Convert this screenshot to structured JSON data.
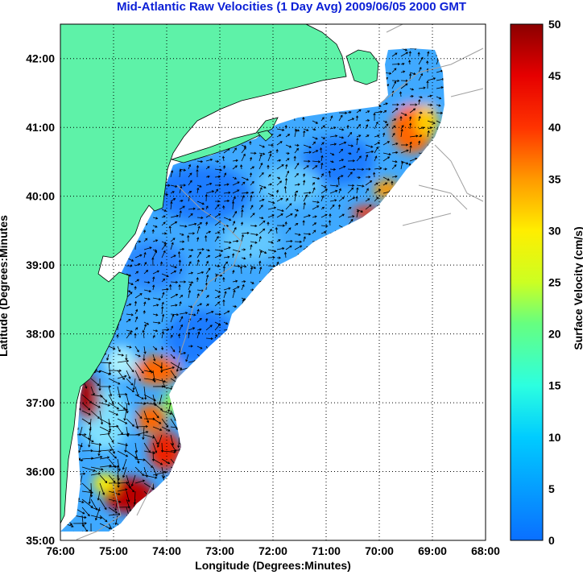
{
  "title": "Mid-Atlantic Raw Velocities (1 Day Avg) 2009/06/05 2000 GMT",
  "xlabel": "Longitude (Degrees:Minutes)",
  "ylabel": "Latitude (Degrees:Minutes",
  "colorbar": {
    "label": "Surface Velocity (cm/s)",
    "ticks": [
      "0",
      "5",
      "10",
      "15",
      "20",
      "25",
      "30",
      "35",
      "40",
      "45",
      "50"
    ],
    "range": [
      0,
      50
    ]
  },
  "chart_data": {
    "type": "map",
    "xlim_deg_west": [
      76,
      68
    ],
    "ylim_deg_north": [
      35,
      42.5
    ],
    "x_ticks": [
      "76:00",
      "75:00",
      "74:00",
      "73:00",
      "72:00",
      "71:00",
      "70:00",
      "69:00",
      "68:00"
    ],
    "y_ticks": [
      "35:00",
      "36:00",
      "37:00",
      "38:00",
      "39:00",
      "40:00",
      "41:00",
      "42:00"
    ],
    "grid": "dotted",
    "colors": {
      "land": "#5ef2a8",
      "ocean_bg": "#ffffff",
      "title": "#0b1fd6",
      "bathymetry": "#a0a0a0"
    }
  }
}
